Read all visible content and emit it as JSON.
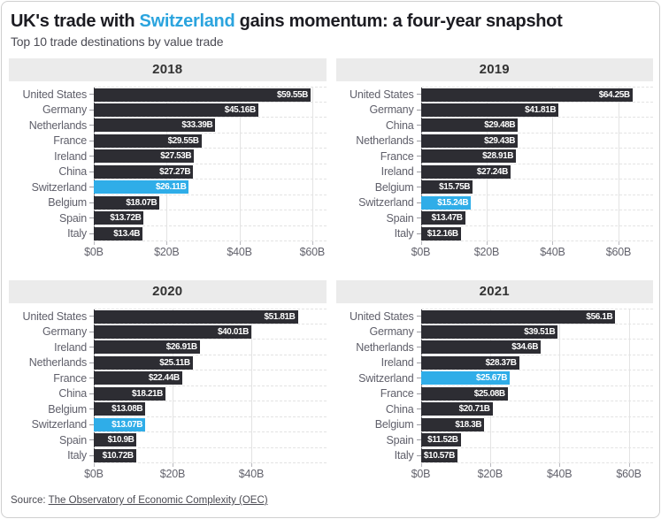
{
  "header": {
    "title_prefix": "UK's trade with ",
    "title_highlight": "Switzerland",
    "title_suffix": " gains momentum: a four-year snapshot",
    "subtitle": "Top 10 trade destinations by value trade"
  },
  "footer": {
    "source_label": "Source: ",
    "source_link": "The Observatory of Economic Complexity (OEC)"
  },
  "colors": {
    "bar": "#2d2d33",
    "highlight": "#2fade8",
    "title_highlight": "#2ba4de",
    "panel_header_bg": "#ebebeb"
  },
  "highlight_country": "Switzerland",
  "chart_data": [
    {
      "type": "bar",
      "orientation": "horizontal",
      "title": "2018",
      "categories": [
        "United States",
        "Germany",
        "Netherlands",
        "France",
        "Ireland",
        "China",
        "Switzerland",
        "Belgium",
        "Spain",
        "Italy"
      ],
      "values": [
        59.55,
        45.16,
        33.39,
        29.55,
        27.53,
        27.27,
        26.11,
        18.07,
        13.72,
        13.4
      ],
      "labels": [
        "$59.55B",
        "$45.16B",
        "$33.39B",
        "$29.55B",
        "$27.53B",
        "$27.27B",
        "$26.11B",
        "$18.07B",
        "$13.72B",
        "$13.4B"
      ],
      "xlabel": "",
      "ylabel": "",
      "axis_max": 63.8,
      "ticks": [
        0,
        20,
        40,
        60
      ],
      "tick_labels": [
        "$0B",
        "$20B",
        "$40B",
        "$60B"
      ]
    },
    {
      "type": "bar",
      "orientation": "horizontal",
      "title": "2019",
      "categories": [
        "United States",
        "Germany",
        "China",
        "Netherlands",
        "France",
        "Ireland",
        "Belgium",
        "Switzerland",
        "Spain",
        "Italy"
      ],
      "values": [
        64.25,
        41.81,
        29.48,
        29.43,
        28.91,
        27.24,
        15.75,
        15.24,
        13.47,
        12.16
      ],
      "labels": [
        "$64.25B",
        "$41.81B",
        "$29.48B",
        "$29.43B",
        "$28.91B",
        "$27.24B",
        "$15.75B",
        "$15.24B",
        "$13.47B",
        "$12.16B"
      ],
      "xlabel": "",
      "ylabel": "",
      "axis_max": 70.5,
      "ticks": [
        0,
        20,
        40,
        60
      ],
      "tick_labels": [
        "$0B",
        "$20B",
        "$40B",
        "$60B"
      ]
    },
    {
      "type": "bar",
      "orientation": "horizontal",
      "title": "2020",
      "categories": [
        "United States",
        "Germany",
        "Ireland",
        "Netherlands",
        "France",
        "China",
        "Belgium",
        "Switzerland",
        "Spain",
        "Italy"
      ],
      "values": [
        51.81,
        40.01,
        26.91,
        25.11,
        22.44,
        18.21,
        13.08,
        13.07,
        10.9,
        10.72
      ],
      "labels": [
        "$51.81B",
        "$40.01B",
        "$26.91B",
        "$25.11B",
        "$22.44B",
        "$18.21B",
        "$13.08B",
        "$13.07B",
        "$10.9B",
        "$10.72B"
      ],
      "xlabel": "",
      "ylabel": "",
      "axis_max": 59,
      "ticks": [
        0,
        20,
        40
      ],
      "tick_labels": [
        "$0B",
        "$20B",
        "$40B"
      ]
    },
    {
      "type": "bar",
      "orientation": "horizontal",
      "title": "2021",
      "categories": [
        "United States",
        "Germany",
        "Netherlands",
        "Ireland",
        "Switzerland",
        "France",
        "China",
        "Belgium",
        "Spain",
        "Italy"
      ],
      "values": [
        56.1,
        39.51,
        34.6,
        28.37,
        25.67,
        25.08,
        20.71,
        18.3,
        11.52,
        10.57
      ],
      "labels": [
        "$56.1B",
        "$39.51B",
        "$34.6B",
        "$28.37B",
        "$25.67B",
        "$25.08B",
        "$20.71B",
        "$18.3B",
        "$11.52B",
        "$10.57B"
      ],
      "xlabel": "",
      "ylabel": "",
      "axis_max": 67,
      "ticks": [
        0,
        20,
        40,
        60
      ],
      "tick_labels": [
        "$0B",
        "$20B",
        "$40B",
        "$60B"
      ]
    }
  ]
}
